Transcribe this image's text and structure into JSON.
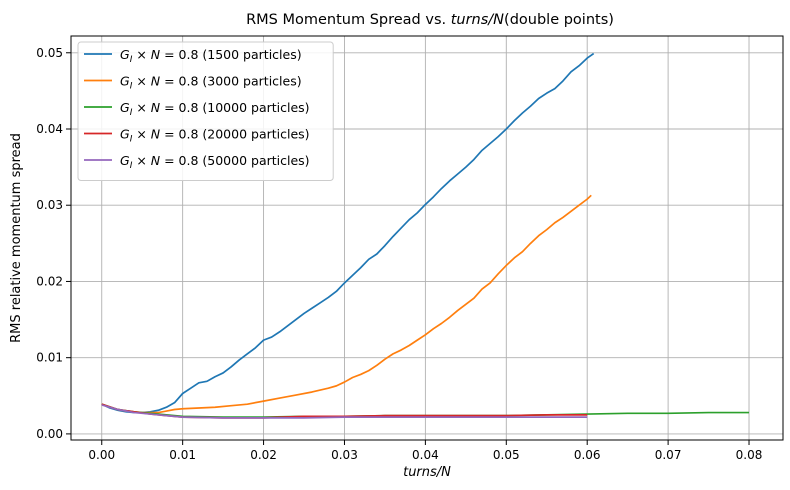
{
  "chart_data": {
    "type": "line",
    "title": "RMS Momentum Spread vs. turns/N(double points)",
    "title_plain": "RMS Momentum Spread vs. ",
    "title_italic": "turns/N",
    "title_suffix": "(double points)",
    "xlabel": "turns/N",
    "ylabel": "RMS relative momentum spread",
    "xlim": [
      -0.0038,
      0.0842
    ],
    "ylim": [
      -0.0008,
      0.0522
    ],
    "xticks": [
      "0.00",
      "0.01",
      "0.02",
      "0.03",
      "0.04",
      "0.05",
      "0.06",
      "0.07",
      "0.08"
    ],
    "xtick_values": [
      0,
      0.01,
      0.02,
      0.03,
      0.04,
      0.05,
      0.06,
      0.07,
      0.08
    ],
    "yticks": [
      "0.00",
      "0.01",
      "0.02",
      "0.03",
      "0.04",
      "0.05"
    ],
    "ytick_values": [
      0,
      0.01,
      0.02,
      0.03,
      0.04,
      0.05
    ],
    "grid": true,
    "legend_position": "top-left",
    "series": [
      {
        "name": "G_I × N = 0.8 (1500 particles)",
        "label_prefix": "G",
        "label_sub": "I",
        "label_mid": " × ",
        "label_n": "N",
        "label_rest": " = 0.8 (1500 particles)",
        "color": "#1f77b4",
        "x": [
          0,
          0.001,
          0.002,
          0.003,
          0.004,
          0.005,
          0.006,
          0.007,
          0.008,
          0.009,
          0.01,
          0.011,
          0.012,
          0.013,
          0.014,
          0.015,
          0.016,
          0.017,
          0.018,
          0.019,
          0.02,
          0.021,
          0.022,
          0.023,
          0.024,
          0.025,
          0.026,
          0.027,
          0.028,
          0.029,
          0.03,
          0.031,
          0.032,
          0.033,
          0.034,
          0.035,
          0.036,
          0.037,
          0.038,
          0.039,
          0.04,
          0.041,
          0.042,
          0.043,
          0.044,
          0.045,
          0.046,
          0.047,
          0.048,
          0.049,
          0.05,
          0.051,
          0.052,
          0.053,
          0.054,
          0.055,
          0.056,
          0.057,
          0.058,
          0.059,
          0.06,
          0.0608
        ],
        "y": [
          0.0039,
          0.0034,
          0.0031,
          0.0029,
          0.0028,
          0.0028,
          0.0029,
          0.0031,
          0.0035,
          0.0041,
          0.0053,
          0.006,
          0.0067,
          0.0069,
          0.0075,
          0.008,
          0.0088,
          0.0097,
          0.0105,
          0.0113,
          0.0123,
          0.0127,
          0.0134,
          0.0142,
          0.015,
          0.0158,
          0.0165,
          0.0172,
          0.0179,
          0.0187,
          0.0198,
          0.0208,
          0.0218,
          0.0229,
          0.0236,
          0.0247,
          0.0259,
          0.027,
          0.0281,
          0.029,
          0.0301,
          0.0311,
          0.0322,
          0.0332,
          0.0341,
          0.035,
          0.036,
          0.0372,
          0.0381,
          0.039,
          0.04,
          0.0411,
          0.0421,
          0.043,
          0.044,
          0.0447,
          0.0453,
          0.0463,
          0.0475,
          0.0483,
          0.0493,
          0.0499
        ]
      },
      {
        "name": "G_I × N = 0.8 (3000 particles)",
        "label_prefix": "G",
        "label_sub": "I",
        "label_mid": " × ",
        "label_n": "N",
        "label_rest": " = 0.8 (3000 particles)",
        "color": "#ff7f0e",
        "x": [
          0,
          0.001,
          0.002,
          0.003,
          0.004,
          0.005,
          0.006,
          0.007,
          0.008,
          0.009,
          0.01,
          0.012,
          0.014,
          0.016,
          0.018,
          0.02,
          0.022,
          0.024,
          0.026,
          0.028,
          0.029,
          0.03,
          0.031,
          0.032,
          0.033,
          0.034,
          0.035,
          0.036,
          0.037,
          0.038,
          0.039,
          0.04,
          0.041,
          0.042,
          0.043,
          0.044,
          0.045,
          0.046,
          0.047,
          0.048,
          0.049,
          0.05,
          0.051,
          0.052,
          0.053,
          0.054,
          0.055,
          0.056,
          0.057,
          0.058,
          0.059,
          0.06,
          0.0605
        ],
        "y": [
          0.0039,
          0.0035,
          0.0032,
          0.003,
          0.0029,
          0.0028,
          0.0028,
          0.0028,
          0.003,
          0.0032,
          0.0033,
          0.0034,
          0.0035,
          0.0037,
          0.0039,
          0.0043,
          0.0047,
          0.0051,
          0.0055,
          0.006,
          0.0063,
          0.0068,
          0.0074,
          0.0078,
          0.0083,
          0.009,
          0.0098,
          0.0105,
          0.011,
          0.0116,
          0.0123,
          0.013,
          0.0138,
          0.0145,
          0.0153,
          0.0162,
          0.017,
          0.0178,
          0.019,
          0.0198,
          0.021,
          0.0221,
          0.0231,
          0.0239,
          0.025,
          0.026,
          0.0268,
          0.0277,
          0.0284,
          0.0292,
          0.03,
          0.0308,
          0.0313
        ]
      },
      {
        "name": "G_I × N = 0.8 (10000 particles)",
        "label_prefix": "G",
        "label_sub": "I",
        "label_mid": " × ",
        "label_n": "N",
        "label_rest": " = 0.8 (10000 particles)",
        "color": "#2ca02c",
        "x": [
          0,
          0.002,
          0.004,
          0.006,
          0.008,
          0.01,
          0.015,
          0.02,
          0.025,
          0.03,
          0.035,
          0.04,
          0.045,
          0.05,
          0.055,
          0.06,
          0.065,
          0.07,
          0.075,
          0.08
        ],
        "y": [
          0.0039,
          0.0032,
          0.0029,
          0.0027,
          0.0025,
          0.0023,
          0.0022,
          0.0022,
          0.0023,
          0.0023,
          0.0024,
          0.0024,
          0.0024,
          0.0024,
          0.0025,
          0.0026,
          0.0027,
          0.0027,
          0.0028,
          0.0028
        ]
      },
      {
        "name": "G_I × N = 0.8 (20000 particles)",
        "label_prefix": "G",
        "label_sub": "I",
        "label_mid": " × ",
        "label_n": "N",
        "label_rest": " = 0.8 (20000 particles)",
        "color": "#d62728",
        "x": [
          0,
          0.002,
          0.004,
          0.006,
          0.008,
          0.01,
          0.015,
          0.02,
          0.025,
          0.03,
          0.035,
          0.04,
          0.045,
          0.05,
          0.055,
          0.06
        ],
        "y": [
          0.0039,
          0.0032,
          0.0029,
          0.0026,
          0.0024,
          0.0022,
          0.0021,
          0.0021,
          0.0023,
          0.0023,
          0.0024,
          0.0024,
          0.0024,
          0.0024,
          0.0025,
          0.0025
        ]
      },
      {
        "name": "G_I × N = 0.8 (50000 particles)",
        "label_prefix": "G",
        "label_sub": "I",
        "label_mid": " × ",
        "label_n": "N",
        "label_rest": " = 0.8 (50000 particles)",
        "color": "#9467bd",
        "x": [
          0,
          0.002,
          0.004,
          0.006,
          0.008,
          0.01,
          0.015,
          0.02,
          0.025,
          0.03,
          0.035,
          0.04,
          0.045,
          0.05,
          0.055,
          0.06
        ],
        "y": [
          0.0038,
          0.0032,
          0.0028,
          0.0026,
          0.0024,
          0.0022,
          0.0021,
          0.0021,
          0.0021,
          0.0022,
          0.0022,
          0.0022,
          0.0022,
          0.0022,
          0.0022,
          0.0022
        ]
      }
    ]
  }
}
